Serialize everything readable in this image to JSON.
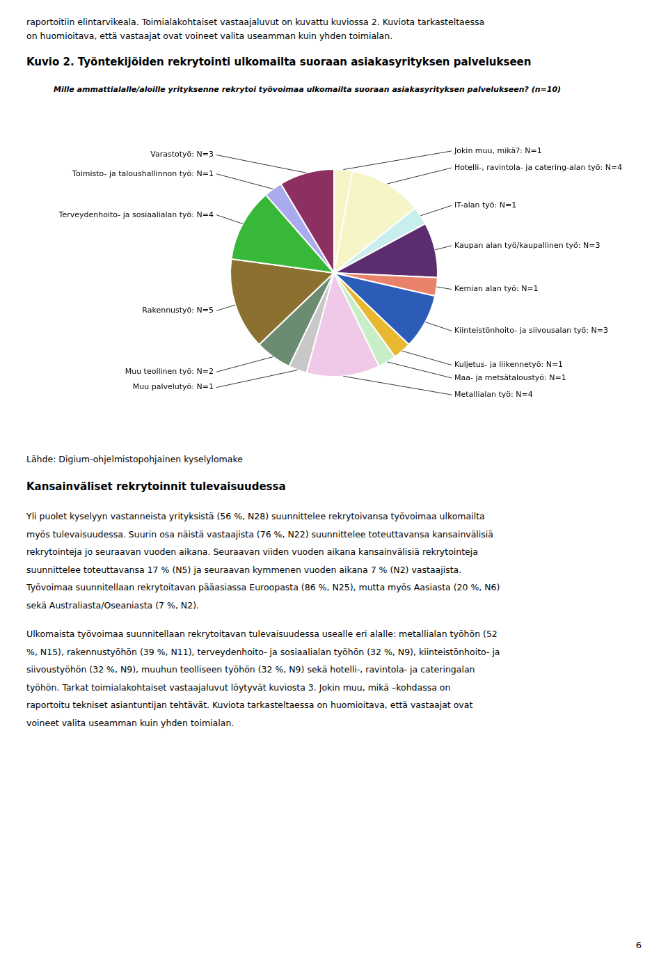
{
  "chart_data": {
    "type": "pie",
    "title": "Kuvio 2. Työntekijöiden rekrytointi ulkomailta suoraan asiakasyrityksen palvelukseen",
    "subtitle": "Mille ammattialalle/aloille yrityksenne rekrytoi työvoimaa ulkomailta suoraan asiakasyrityksen palvelukseen? (n=10)",
    "categories": [
      "Jokin muu, mikä?: N=1",
      "Hotelli-, ravintola- ja catering-alan työ: N=4",
      "IT-alan työ: N=1",
      "Kaupan alan työ/kaupallinen työ: N=3",
      "Kemian alan työ: N=1",
      "Kiinteistönhoito- ja siivousalan työ: N=3",
      "Kuljetus- ja liikennetyö: N=1",
      "Maa- ja metsätaloustyö: N=1",
      "Metallialan työ: N=4",
      "Muu palvelutyö: N=1",
      "Muu teollinen työ: N=2",
      "Rakennustyö: N=5",
      "Terveydenhoito- ja sosiaalialan työ: N=4",
      "Toimisto- ja taloushallinnon työ: N=1",
      "Varastotyö: N=3"
    ],
    "values": [
      1,
      4,
      1,
      3,
      1,
      3,
      1,
      1,
      4,
      1,
      2,
      5,
      4,
      1,
      3
    ],
    "colors": [
      "#F5F5C8",
      "#F5F5C8",
      "#C8EEEE",
      "#5C2D6E",
      "#E8826A",
      "#2B5CB8",
      "#E8B830",
      "#C8EEC8",
      "#F0C8E8",
      "#C8C8C8",
      "#6B8C70",
      "#8B7030",
      "#38B838",
      "#AAAAEE",
      "#8B3060"
    ],
    "legend": false
  },
  "page_text": {
    "top": [
      "raportoitiin elintarvikeala. Toimialakohtaiset vastaajaluvut on kuvattu kuviossa 2. Kuviota tarkasteltaessa",
      "on huomioitava, että vastaajat ovat voineet valita useamman kuin yhden toimialan."
    ],
    "source": "Lähde: Digium-ohjelmistopohjainen kyselylomake",
    "section_title": "Kansainväliset rekrytoinnit tulevaisuudessa",
    "body": [
      [
        "Yli puolet kyselyyn vastanneista yrityksistä (56 %, N28) suunnittelee rekrytoivansa työvoimaa ulkomailta",
        "myös tulevaisuudessa. Suurin osa näistä vastaajista (76 %, N22) suunnittelee toteuttavansa kansainvälisiä",
        "rekrytointeja jo seuraavan vuoden aikana. Seuraavan viiden vuoden aikana kansainvälisiä rekrytointeja",
        "suunnittelee toteuttavansa 17 % (N5) ja seuraavan kymmenen vuoden aikana 7 % (N2) vastaajista.",
        "Työvoimaa suunnitellaan rekrytoitavan pääasiassa Euroopasta (86 %, N25), mutta myös Aasiasta (20 %, N6)",
        "sekä Australiasta/Oseaniasta (7 %, N2)."
      ],
      [
        "Ulkomaista työvoimaa suunnitellaan rekrytoitavan tulevaisuudessa usealle eri alalle: metallialan työhön (52",
        "%, N15), rakennustyöhön (39 %, N11), terveydenhoito- ja sosiaalialan työhön (32 %, N9), kiinteistönhoito- ja",
        "siivoustyöhön (32 %, N9), muuhun teolliseen työhön (32 %, N9) sekä hotelli-, ravintola- ja cateringalan",
        "työhön. Tarkat toimialakohtaiset vastaajaluvut löytyvät kuviosta 3. Jokin muu, mikä –kohdassa on",
        "raportoitu tekniset asiantuntijan tehtävät. Kuviota tarkasteltaessa on huomioitava, että vastaajat ovat",
        "voineet valita useamman kuin yhden toimialan."
      ]
    ],
    "page_number": "6"
  }
}
